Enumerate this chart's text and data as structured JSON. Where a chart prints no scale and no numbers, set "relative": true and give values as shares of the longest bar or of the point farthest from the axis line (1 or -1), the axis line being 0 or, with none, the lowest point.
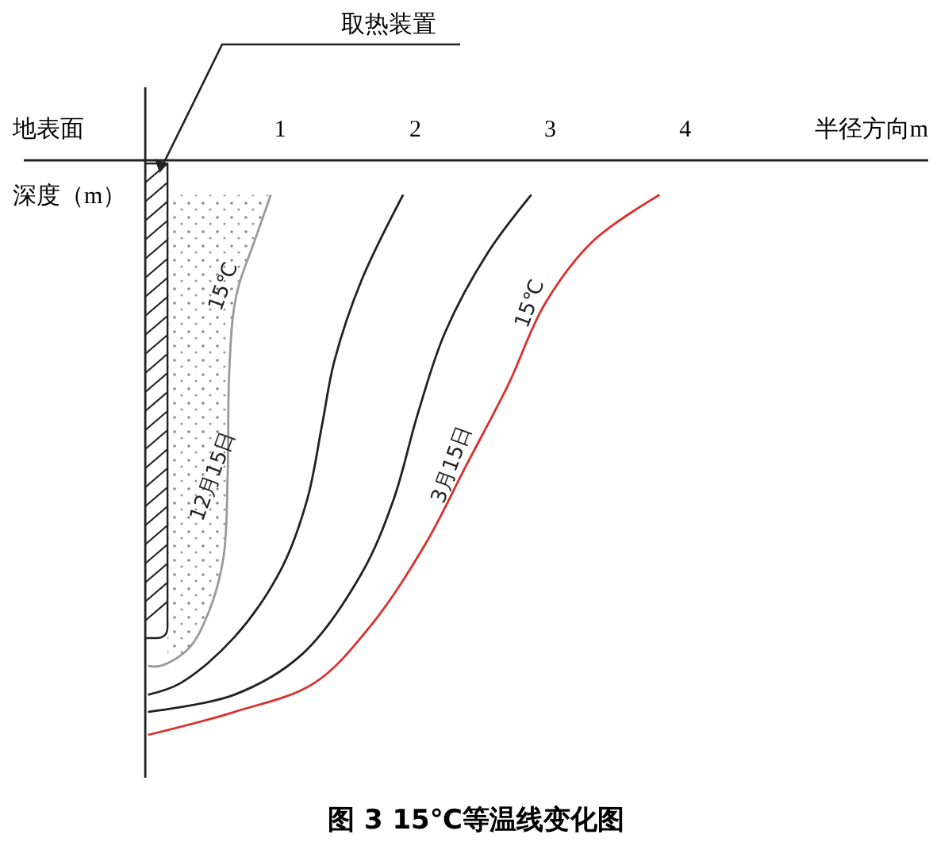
{
  "chart_data": {
    "type": "line",
    "title": "图 3  15℃等温线变化图",
    "xlabel": "半径方向m",
    "ylabel": "深度（m）",
    "relative": true,
    "xlim": [
      -0.9,
      5.8
    ],
    "xticks": [
      1,
      2,
      3,
      4
    ],
    "tick_labels": "x",
    "grid": false,
    "marker": "none",
    "line_style": "solid",
    "series": [
      {
        "color": "#9a9a9a",
        "x": [
          0.93,
          0.81,
          0.69,
          0.65,
          0.62,
          0.61,
          0.58,
          0.48,
          0.32,
          0.11,
          0.02
        ],
        "values": [
          -0.06,
          -0.14,
          -0.22,
          -0.27,
          -0.38,
          -0.55,
          -0.69,
          -0.78,
          -0.85,
          -0.88,
          -0.88
        ]
      },
      {
        "color": "#222222",
        "x": [
          1.91,
          1.6,
          1.4,
          1.31,
          1.2,
          1.01,
          0.66,
          0.26,
          0.02
        ],
        "values": [
          -0.06,
          -0.21,
          -0.35,
          -0.46,
          -0.59,
          -0.71,
          -0.83,
          -0.91,
          -0.93
        ]
      },
      {
        "color": "#222222",
        "x": [
          2.86,
          2.54,
          2.22,
          2.02,
          1.84,
          1.6,
          1.16,
          0.66,
          0.02
        ],
        "values": [
          -0.06,
          -0.16,
          -0.3,
          -0.44,
          -0.59,
          -0.72,
          -0.86,
          -0.93,
          -0.96
        ]
      },
      {
        "color": "#d9302c",
        "x": [
          3.81,
          3.32,
          2.96,
          2.69,
          2.38,
          2.07,
          1.67,
          1.25,
          0.66,
          0.02
        ],
        "values": [
          -0.06,
          -0.14,
          -0.25,
          -0.39,
          -0.53,
          -0.67,
          -0.81,
          -0.91,
          -0.96,
          -1
        ]
      }
    ],
    "annotations": [
      "取热装置",
      "地表面",
      {
        "text": "15℃",
        "x": 0.69,
        "y": -0.22
      },
      {
        "text": "12月15日",
        "x": 0.61,
        "y": -0.55
      },
      {
        "text": "15℃",
        "x": 2.96,
        "y": -0.25
      },
      {
        "text": "3月15日",
        "x": 2.38,
        "y": -0.53
      }
    ]
  }
}
